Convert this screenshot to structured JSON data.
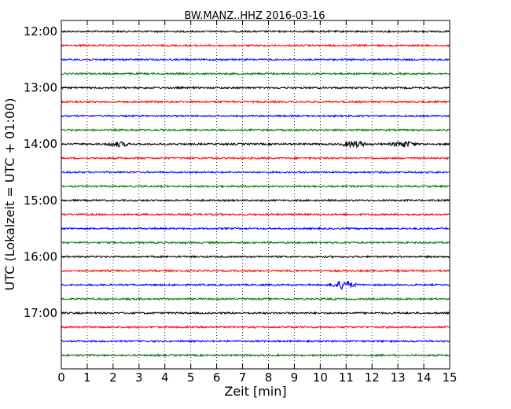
{
  "chart_data": {
    "type": "line",
    "title": "BW.MANZ..HHZ 2016-03-16",
    "xlabel": "Zeit  [min]",
    "ylabel": "UTC (Lokalzeit = UTC + 01:00)",
    "xlim": [
      0,
      15
    ],
    "x_ticks": [
      "0",
      "1",
      "2",
      "3",
      "4",
      "5",
      "6",
      "7",
      "8",
      "9",
      "10",
      "11",
      "12",
      "13",
      "14",
      "15"
    ],
    "y_ticks": [
      "12:00",
      "13:00",
      "14:00",
      "15:00",
      "16:00",
      "17:00"
    ],
    "grid": "vertical dotted",
    "trace_colors": [
      "#000000",
      "#ff0000",
      "#0000ff",
      "#007700"
    ],
    "traces": [
      {
        "start": "12:00",
        "color": "#000000"
      },
      {
        "start": "12:15",
        "color": "#ff0000"
      },
      {
        "start": "12:30",
        "color": "#0000ff"
      },
      {
        "start": "12:45",
        "color": "#007700"
      },
      {
        "start": "13:00",
        "color": "#000000"
      },
      {
        "start": "13:15",
        "color": "#ff0000"
      },
      {
        "start": "13:30",
        "color": "#0000ff"
      },
      {
        "start": "13:45",
        "color": "#007700"
      },
      {
        "start": "14:00",
        "color": "#000000",
        "events": [
          {
            "minute": 2.2,
            "amplitude": 0.35
          },
          {
            "minute": 11.3,
            "amplitude": 0.5
          },
          {
            "minute": 13.2,
            "amplitude": 0.45
          }
        ]
      },
      {
        "start": "14:15",
        "color": "#ff0000"
      },
      {
        "start": "14:30",
        "color": "#0000ff"
      },
      {
        "start": "14:45",
        "color": "#007700"
      },
      {
        "start": "15:00",
        "color": "#000000"
      },
      {
        "start": "15:15",
        "color": "#ff0000"
      },
      {
        "start": "15:30",
        "color": "#0000ff"
      },
      {
        "start": "15:45",
        "color": "#007700"
      },
      {
        "start": "16:00",
        "color": "#000000"
      },
      {
        "start": "16:15",
        "color": "#ff0000"
      },
      {
        "start": "16:30",
        "color": "#0000ff",
        "events": [
          {
            "minute": 10.9,
            "amplitude": 0.7
          }
        ]
      },
      {
        "start": "16:45",
        "color": "#007700"
      },
      {
        "start": "17:00",
        "color": "#000000"
      },
      {
        "start": "17:15",
        "color": "#ff0000"
      },
      {
        "start": "17:30",
        "color": "#0000ff"
      },
      {
        "start": "17:45",
        "color": "#007700"
      }
    ]
  }
}
